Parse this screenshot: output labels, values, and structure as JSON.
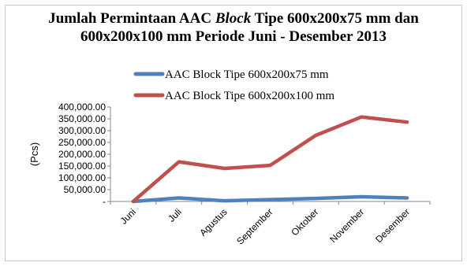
{
  "chart_data": {
    "type": "line",
    "title_parts": {
      "line1_a": "Jumlah Permintaan AAC ",
      "line1_b": "Block",
      "line1_c": " Tipe 600x200x75 mm dan",
      "line2": "600x200x100 mm  Periode Juni - Desember 2013"
    },
    "xlabel": "",
    "ylabel": "(Pcs)",
    "categories": [
      "Juni",
      "Juli",
      "Agustus",
      "September",
      "Oktober",
      "November",
      "Desember"
    ],
    "series": [
      {
        "name": "AAC Block Tipe 600x200x75 mm",
        "color": "#4F81BD",
        "values": [
          0,
          15000,
          3000,
          8000,
          13000,
          20000,
          15000
        ]
      },
      {
        "name": "AAC Block Tipe 600x200x100 mm",
        "color": "#C0504D",
        "values": [
          0,
          168000,
          140000,
          153000,
          280000,
          358000,
          336000
        ]
      }
    ],
    "ylim": [
      0,
      400000
    ],
    "yticks": [
      0,
      50000,
      100000,
      150000,
      200000,
      250000,
      300000,
      350000,
      400000
    ],
    "ytick_labels": [
      "-",
      "50,000.00",
      "100,000.00",
      "150,000.00",
      "200,000.00",
      "250,000.00",
      "300,000.00",
      "350,000.00",
      "400,000.00"
    ],
    "grid": false,
    "legend_position": "top"
  }
}
